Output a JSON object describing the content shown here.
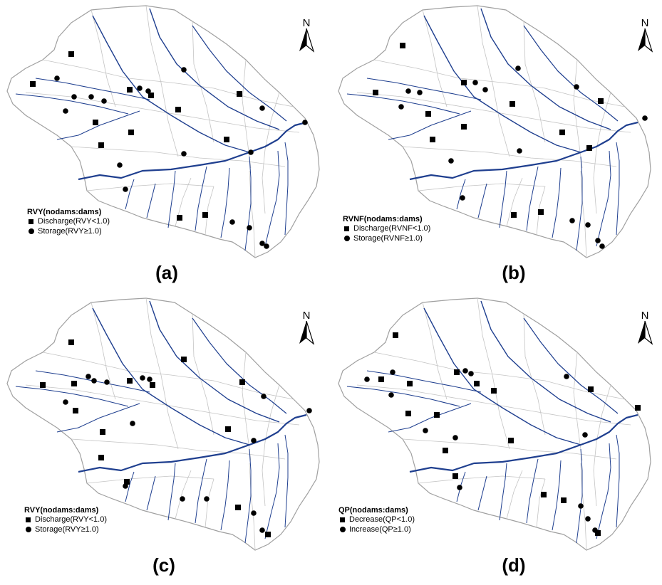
{
  "north_label": "N",
  "colors": {
    "river": "#1f3f8f",
    "boundary": "#a0a0a0",
    "symbol": "#000000"
  },
  "panels": [
    {
      "label": "(a)",
      "legend_title": "RVY(nodams:dams)",
      "square_label": "Discharge(RVY<1.0)",
      "circle_label": "Storage(RVY≥1.0)"
    },
    {
      "label": "(b)",
      "legend_title": "RVNF(nodams:dams)",
      "square_label": "Discharge(RVNF<1.0)",
      "circle_label": "Storage(RVNF≥1.0)"
    },
    {
      "label": "(c)",
      "legend_title": "RVY(nodams:dams)",
      "square_label": "Discharge(RVY<1.0)",
      "circle_label": "Storage(RVY≥1.0)"
    },
    {
      "label": "(d)",
      "legend_title": "QP(nodams:dams)",
      "square_label": "Decrease(QP<1.0)",
      "circle_label": "Increase(QP≥1.0)"
    }
  ]
}
